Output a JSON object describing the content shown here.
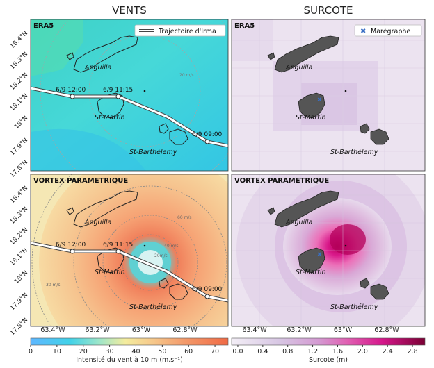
{
  "columns": {
    "left_title": "VENTS",
    "right_title": "SURCOTE"
  },
  "panels": {
    "top_left_title": "ERA5",
    "top_right_title": "ERA5",
    "bottom_left_title": "VORTEX PARAMETRIQUE",
    "bottom_right_title": "VORTEX PARAMETRIQUE"
  },
  "legends": {
    "track": "Trajectoire d'Irma",
    "tide_gauge": "Marégraphe"
  },
  "places": {
    "anguilla": "Anguilla",
    "st_martin": "St-Martin",
    "st_barth": "St-Barthélemy"
  },
  "track_times": {
    "t1": "6/9 12:00",
    "t2": "6/9 11:15",
    "t3": "6/9 09:00"
  },
  "contour_labels": {
    "c20": "20 m/s",
    "c60": "60 m/s",
    "c40": "40 m/s",
    "c20b": "20m/s",
    "c30": "30 m/s"
  },
  "axes": {
    "y_ticks": [
      "18.4°N",
      "18.3°N",
      "18.2°N",
      "18.1°N",
      "18°N",
      "17.9°N",
      "17.8°N"
    ],
    "x_ticks": [
      "63.4°W",
      "63.2°W",
      "63°W",
      "62.8°W"
    ]
  },
  "colorbars": {
    "wind": {
      "label": "Intensité du vent à 10 m (m.s⁻¹)",
      "ticks": [
        "0",
        "10",
        "20",
        "30",
        "40",
        "50",
        "60",
        "70"
      ],
      "min": 0,
      "max": 75
    },
    "surge": {
      "label": "Surcote (m)",
      "ticks": [
        "0.0",
        "0.4",
        "0.8",
        "1.2",
        "1.6",
        "2.0",
        "2.4",
        "2.8"
      ],
      "min": -0.1,
      "max": 3.0
    }
  },
  "colors": {
    "track": "#ffffff",
    "island": "#555555",
    "gauge": "#3a6fc4"
  },
  "chart_data": {
    "type": "heatmap",
    "panels": [
      "ERA5 vents",
      "ERA5 surcote",
      "Vortex paramétrique vents",
      "Vortex paramétrique surcote"
    ],
    "track": {
      "lon": [
        -63.42,
        -63.3,
        -63.17,
        -62.9,
        -62.78,
        -62.7
      ],
      "lat": [
        18.13,
        18.105,
        18.1,
        18.0,
        17.94,
        17.9
      ]
    },
    "track_points": [
      {
        "label": "6/9 12:00",
        "lon": -63.3,
        "lat": 18.105
      },
      {
        "label": "6/9 11:15",
        "lon": -63.15,
        "lat": 18.1
      },
      {
        "label": "6/9 09:00",
        "lon": -62.82,
        "lat": 17.94
      }
    ],
    "tide_gauge": {
      "lon": -63.07,
      "lat": 18.04
    },
    "wind_range_ms": [
      0,
      75
    ],
    "surge_range_m": [
      0,
      3.0
    ]
  }
}
